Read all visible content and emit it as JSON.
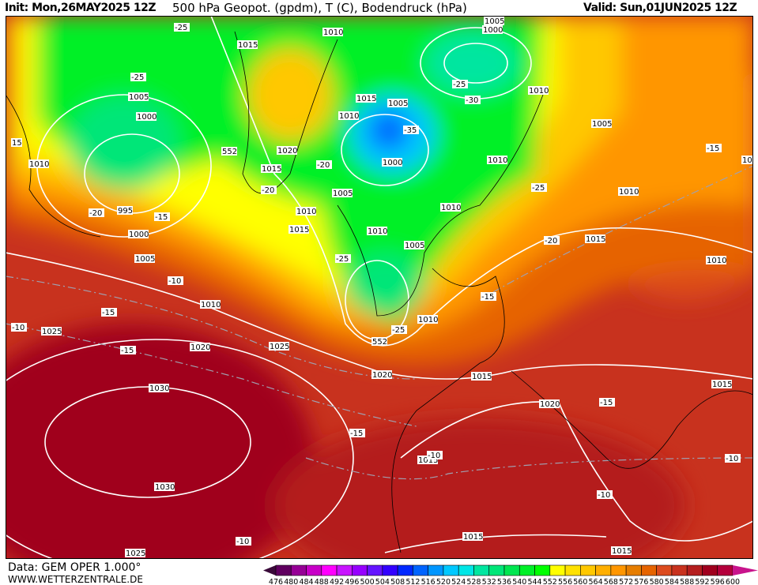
{
  "header": {
    "init": "Init: Mon,26MAY2025 12Z",
    "title": "500 hPa Geopot. (gpdm), T (C), Bodendruck (hPa)",
    "valid": "Valid: Sun,01JUN2025 12Z"
  },
  "footer": {
    "source": "Data: GEM OPER 1.000°",
    "url": "WWW.WETTERZENTRALE.DE"
  },
  "legend": {
    "labels": [
      "476",
      "480",
      "484",
      "488",
      "492",
      "496",
      "500",
      "504",
      "508",
      "512",
      "516",
      "520",
      "524",
      "528",
      "532",
      "536",
      "540",
      "544",
      "552",
      "556",
      "560",
      "564",
      "568",
      "572",
      "576",
      "580",
      "584",
      "588",
      "592",
      "596",
      "600"
    ],
    "colors": [
      "#3a0a3a",
      "#600060",
      "#960096",
      "#c800c8",
      "#ff00ff",
      "#c814ff",
      "#9600ff",
      "#6414ff",
      "#3200ff",
      "#0028ff",
      "#0064ff",
      "#0096ff",
      "#00c8ff",
      "#00e6e6",
      "#00e6a0",
      "#00e678",
      "#00e650",
      "#00f028",
      "#00ff00",
      "#ffff00",
      "#ffe100",
      "#ffc800",
      "#ffaf00",
      "#ff9600",
      "#e67d00",
      "#e66400",
      "#dc4b1e",
      "#c8321e",
      "#b41e1e",
      "#a0001e",
      "#b4003c",
      "#c8148c"
    ]
  },
  "map": {
    "labels": [
      "-25",
      "1015",
      "1010",
      "1005",
      "1000",
      "-25",
      "1005",
      "1000",
      "1015",
      "1005",
      "1010",
      "-30",
      "-25",
      "1010",
      "-35",
      "1005",
      "15",
      "552",
      "1020",
      "-15",
      "1015",
      "1010",
      "1015",
      "-20",
      "1000",
      "1010",
      "-20",
      "1005",
      "-25",
      "1010",
      "-20",
      "995",
      "-15",
      "1010",
      "1010",
      "1000",
      "1015",
      "1010",
      "1015",
      "-20",
      "1005",
      "1005",
      "-25",
      "1010",
      "-10",
      "1010",
      "-15",
      "-15",
      "1010",
      "-10",
      "1025",
      "-25",
      "552",
      "-15",
      "1020",
      "1025",
      "1020",
      "1015",
      "1030",
      "1015",
      "1020",
      "-15",
      "-15",
      "1015",
      "-10",
      "-10",
      "1030",
      "-10",
      "1015",
      "-10",
      "1025",
      "1015"
    ]
  }
}
